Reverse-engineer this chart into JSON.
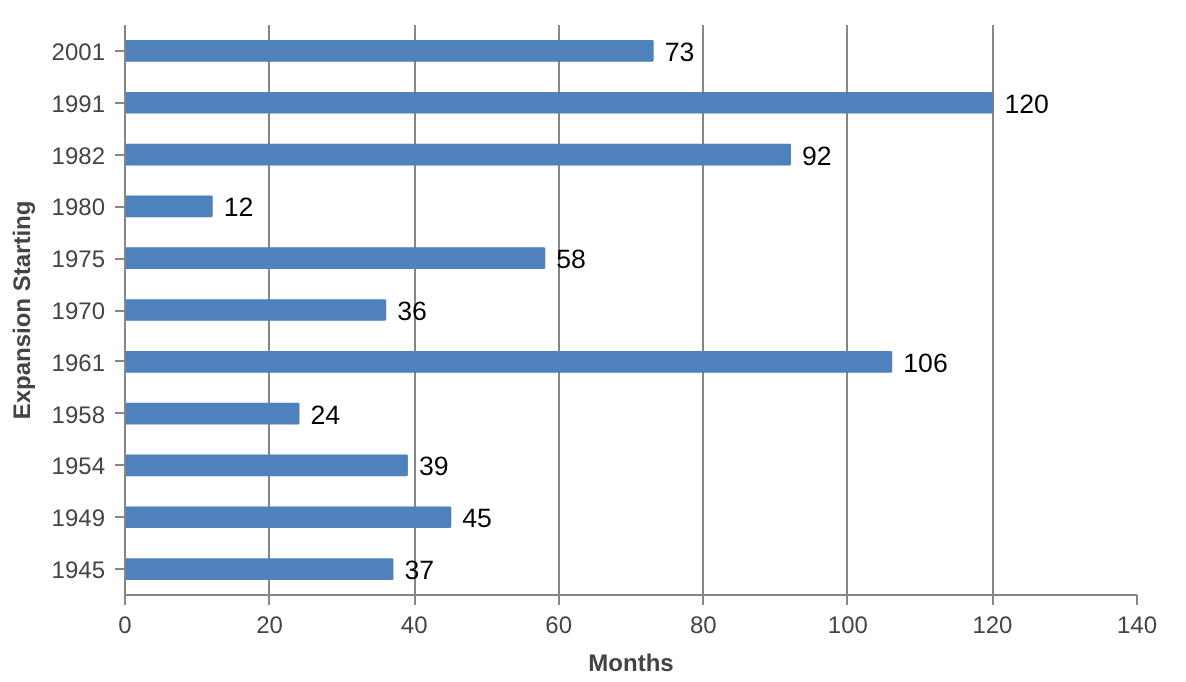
{
  "chart_data": {
    "type": "bar",
    "orientation": "horizontal",
    "xlabel": "Months",
    "ylabel": "Expansion Starting",
    "categories": [
      "2001",
      "1991",
      "1982",
      "1980",
      "1975",
      "1970",
      "1961",
      "1958",
      "1954",
      "1949",
      "1945"
    ],
    "values": [
      73,
      120,
      92,
      12,
      58,
      36,
      106,
      24,
      39,
      45,
      37
    ],
    "color": "#4f81bd",
    "xlim": [
      0,
      140
    ],
    "xticks": [
      0,
      20,
      40,
      60,
      80,
      100,
      120,
      140
    ],
    "grid": "x",
    "data_labels": true
  }
}
